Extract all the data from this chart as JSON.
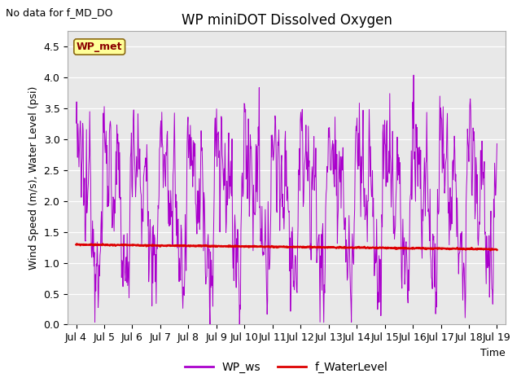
{
  "title": "WP miniDOT Dissolved Oxygen",
  "no_data_text": "No data for f_MD_DO",
  "wp_met_label": "WP_met",
  "ylabel": "Wind Speed (m/s), Water Level (psi)",
  "xlabel": "Time",
  "ylim": [
    0.0,
    4.75
  ],
  "yticks": [
    0.0,
    0.5,
    1.0,
    1.5,
    2.0,
    2.5,
    3.0,
    3.5,
    4.0,
    4.5
  ],
  "legend_labels": [
    "WP_ws",
    "f_WaterLevel"
  ],
  "wp_ws_color": "#aa00cc",
  "f_wl_color": "#dd0000",
  "plot_bg_color": "#e8e8e8",
  "water_level_value": 1.27,
  "tick_fontsize": 9,
  "label_fontsize": 9,
  "title_fontsize": 12
}
